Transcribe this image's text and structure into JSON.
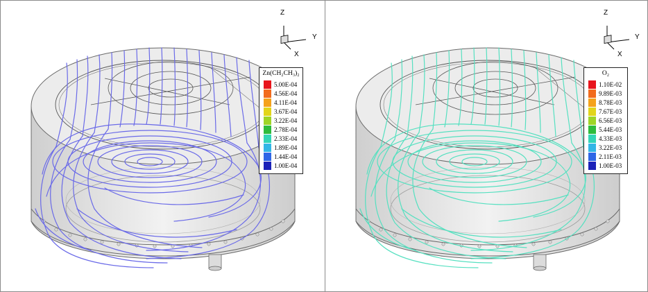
{
  "panels": [
    {
      "legend_title": "Zn(CH₂CH₃)₂",
      "legend_values": [
        "5.00E-04",
        "4.56E-04",
        "4.11E-04",
        "3.67E-04",
        "3.22E-04",
        "2.78E-04",
        "2.33E-04",
        "1.89E-04",
        "1.44E-04",
        "1.00E-04"
      ],
      "streamline_color": "#6a6ae8"
    },
    {
      "legend_title": "O₂",
      "legend_values": [
        "1.10E-02",
        "9.89E-03",
        "8.78E-03",
        "7.67E-03",
        "6.56E-03",
        "5.44E-03",
        "4.33E-03",
        "3.22E-03",
        "2.11E-03",
        "1.00E-03"
      ],
      "streamline_color": "#55e0c0"
    }
  ],
  "legend_colors": [
    "#e8141c",
    "#f26b1d",
    "#f5a21b",
    "#e2d51b",
    "#9fd526",
    "#2ebc3c",
    "#33d6b6",
    "#33b6e6",
    "#2f66e6",
    "#1c22b8"
  ],
  "axes": {
    "z": "Z",
    "y": "Y",
    "x": "X"
  }
}
